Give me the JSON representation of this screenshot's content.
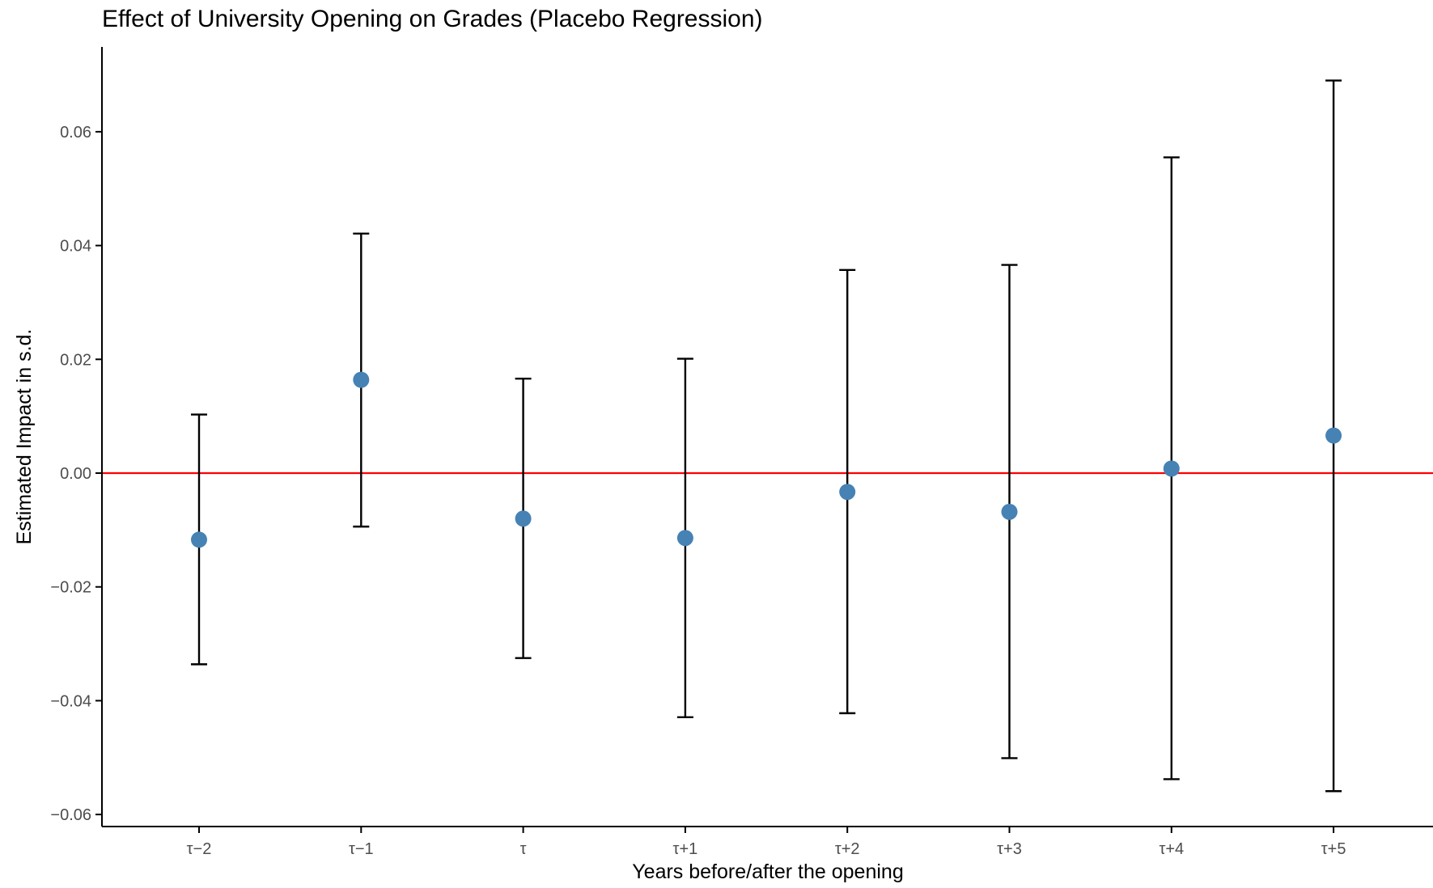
{
  "chart_data": {
    "type": "scatter",
    "title": "Effect of University Opening on Grades (Placebo Regression)",
    "xlabel": "Years before/after the opening",
    "ylabel": "Estimated Impact in s.d.",
    "categories": [
      "τ−2",
      "τ−1",
      "τ",
      "τ+1",
      "τ+2",
      "τ+3",
      "τ+4",
      "τ+5"
    ],
    "series": [
      {
        "estimate": [
          -0.0117,
          0.0164,
          -0.008,
          -0.0114,
          -0.0033,
          -0.0068,
          0.0008,
          0.0066
        ],
        "ci_lower": [
          -0.0336,
          -0.0094,
          -0.0325,
          -0.0429,
          -0.0422,
          -0.0501,
          -0.0538,
          -0.0559
        ],
        "ci_upper": [
          0.0103,
          0.0421,
          0.0166,
          0.0201,
          0.0357,
          0.0366,
          0.0555,
          0.069
        ]
      }
    ],
    "yticks": [
      -0.06,
      -0.04,
      -0.02,
      0.0,
      0.02,
      0.04,
      0.06
    ],
    "ytick_labels": [
      "−0.06",
      "−0.04",
      "−0.02",
      "0.00",
      "0.02",
      "0.04",
      "0.06"
    ],
    "ylim": [
      -0.062,
      0.075
    ],
    "reference_line": 0,
    "grid": false,
    "colors": {
      "point": "#4682b4",
      "errorbar": "#000000",
      "reference_line": "#ff0000",
      "axis": "#000000",
      "tick_label": "#4d4d4d"
    }
  }
}
